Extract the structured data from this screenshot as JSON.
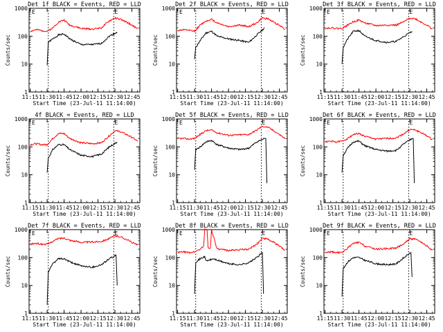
{
  "colors": {
    "events": "#000000",
    "lld": "#ff0000",
    "axis": "#000000",
    "marker": "#000000"
  },
  "shared": {
    "ylabel": "Counts/sec",
    "xlabel": "Start Time (23-Jul-11 11:14:00)",
    "x_ticks": [
      "11:15",
      "11:30",
      "11:45",
      "12:00",
      "12:15",
      "12:30",
      "12:45"
    ],
    "y_ticks": [
      "1",
      "10",
      "100",
      "1000"
    ],
    "xlim": [
      "11:14",
      "12:52"
    ],
    "ylim": [
      1,
      1000
    ],
    "y_scale": "log",
    "vertical_markers": [
      "11:31",
      "12:29"
    ],
    "marker_label": "E"
  },
  "chart_data": [
    {
      "type": "line",
      "title": "Det 1f BLACK = Events, RED = LLD",
      "series": [
        {
          "name": "Events",
          "color": "black",
          "x": [
            "11:30",
            "11:31",
            "11:35",
            "11:40",
            "11:45",
            "11:50",
            "12:00",
            "12:10",
            "12:18",
            "12:25",
            "12:32"
          ],
          "values": [
            9,
            60,
            80,
            110,
            120,
            80,
            50,
            50,
            55,
            100,
            140
          ]
        },
        {
          "name": "LLD",
          "color": "red",
          "x": [
            "11:15",
            "11:20",
            "11:25",
            "11:30",
            "11:35",
            "11:40",
            "11:45",
            "11:50",
            "12:00",
            "12:10",
            "12:18",
            "12:25",
            "12:30",
            "12:35",
            "12:40",
            "12:45",
            "12:50"
          ],
          "values": [
            150,
            170,
            160,
            150,
            200,
            320,
            380,
            250,
            190,
            180,
            200,
            350,
            450,
            400,
            320,
            250,
            180
          ]
        }
      ]
    },
    {
      "type": "line",
      "title": "Det 2f BLACK = Events, RED = LLD",
      "series": [
        {
          "name": "Events",
          "color": "black",
          "x": [
            "11:30",
            "11:31",
            "11:35",
            "11:40",
            "11:45",
            "11:50",
            "12:00",
            "12:10",
            "12:18",
            "12:25",
            "12:32"
          ],
          "values": [
            15,
            40,
            70,
            130,
            150,
            100,
            80,
            70,
            60,
            110,
            200
          ]
        },
        {
          "name": "LLD",
          "color": "red",
          "x": [
            "11:15",
            "11:20",
            "11:25",
            "11:30",
            "11:35",
            "11:40",
            "11:45",
            "11:50",
            "12:00",
            "12:10",
            "12:18",
            "12:25",
            "12:30",
            "12:35",
            "12:40",
            "12:45",
            "12:50"
          ],
          "values": [
            160,
            170,
            160,
            150,
            250,
            350,
            400,
            300,
            220,
            250,
            220,
            300,
            450,
            420,
            320,
            250,
            180
          ]
        }
      ]
    },
    {
      "type": "line",
      "title": "Det 3f BLACK = Events, RED = LLD",
      "series": [
        {
          "name": "Events",
          "color": "black",
          "x": [
            "11:30",
            "11:31",
            "11:35",
            "11:40",
            "11:45",
            "11:50",
            "12:00",
            "12:10",
            "12:18",
            "12:25",
            "12:32"
          ],
          "values": [
            10,
            40,
            80,
            150,
            160,
            100,
            70,
            60,
            65,
            100,
            150
          ]
        },
        {
          "name": "LLD",
          "color": "red",
          "x": [
            "11:15",
            "11:20",
            "11:25",
            "11:30",
            "11:35",
            "11:40",
            "11:45",
            "11:50",
            "12:00",
            "12:10",
            "12:18",
            "12:25",
            "12:30",
            "12:35",
            "12:40",
            "12:45",
            "12:50"
          ],
          "values": [
            190,
            200,
            190,
            190,
            250,
            330,
            380,
            300,
            240,
            250,
            250,
            330,
            450,
            420,
            320,
            250,
            180
          ]
        }
      ]
    },
    {
      "type": "line",
      "title": "4f BLACK = Events, RED = LLD",
      "series": [
        {
          "name": "Events",
          "color": "black",
          "x": [
            "11:30",
            "11:31",
            "11:35",
            "11:40",
            "11:45",
            "11:50",
            "12:00",
            "12:10",
            "12:18",
            "12:25",
            "12:32"
          ],
          "values": [
            12,
            40,
            80,
            120,
            120,
            80,
            50,
            45,
            55,
            100,
            150
          ]
        },
        {
          "name": "LLD",
          "color": "red",
          "x": [
            "11:15",
            "11:20",
            "11:25",
            "11:30",
            "11:35",
            "11:40",
            "11:45",
            "11:50",
            "12:00",
            "12:10",
            "12:18",
            "12:25",
            "12:30",
            "12:35",
            "12:40",
            "12:45",
            "12:50"
          ],
          "values": [
            120,
            130,
            120,
            120,
            200,
            300,
            300,
            200,
            140,
            130,
            140,
            250,
            380,
            350,
            280,
            220,
            160
          ]
        }
      ]
    },
    {
      "type": "line",
      "title": "Det 5f BLACK = Events, RED = LLD",
      "series": [
        {
          "name": "Events",
          "color": "black",
          "x": [
            "11:30",
            "11:31",
            "11:35",
            "11:40",
            "11:45",
            "11:50",
            "12:00",
            "12:10",
            "12:18",
            "12:25",
            "12:32",
            "12:33",
            "12:34"
          ],
          "values": [
            15,
            80,
            100,
            150,
            170,
            120,
            90,
            80,
            90,
            150,
            200,
            200,
            5
          ]
        },
        {
          "name": "LLD",
          "color": "red",
          "x": [
            "11:15",
            "11:20",
            "11:25",
            "11:30",
            "11:35",
            "11:40",
            "11:45",
            "11:50",
            "12:00",
            "12:10",
            "12:18",
            "12:25",
            "12:30",
            "12:35",
            "12:40",
            "12:45",
            "12:50"
          ],
          "values": [
            200,
            200,
            190,
            200,
            280,
            380,
            400,
            320,
            260,
            270,
            280,
            400,
            550,
            500,
            380,
            280,
            200
          ]
        }
      ]
    },
    {
      "type": "line",
      "title": "Det 6f BLACK = Events, RED = LLD",
      "series": [
        {
          "name": "Events",
          "color": "black",
          "x": [
            "11:30",
            "11:31",
            "11:35",
            "11:40",
            "11:45",
            "11:50",
            "12:00",
            "12:10",
            "12:18",
            "12:25",
            "12:32",
            "12:33",
            "12:34"
          ],
          "values": [
            12,
            50,
            90,
            150,
            160,
            110,
            80,
            70,
            75,
            130,
            200,
            200,
            5
          ]
        },
        {
          "name": "LLD",
          "color": "red",
          "x": [
            "11:15",
            "11:20",
            "11:25",
            "11:30",
            "11:35",
            "11:40",
            "11:45",
            "11:50",
            "12:00",
            "12:10",
            "12:18",
            "12:25",
            "12:30",
            "12:35",
            "12:40",
            "12:45",
            "12:50"
          ],
          "values": [
            150,
            160,
            150,
            160,
            200,
            280,
            300,
            240,
            190,
            200,
            210,
            300,
            420,
            400,
            320,
            250,
            180
          ]
        }
      ]
    },
    {
      "type": "line",
      "title": "Det 7f BLACK = Events, RED = LLD",
      "series": [
        {
          "name": "Events",
          "color": "black",
          "x": [
            "11:30",
            "11:31",
            "11:35",
            "11:40",
            "11:45",
            "11:50",
            "12:00",
            "12:10",
            "12:18",
            "12:25",
            "12:31",
            "12:32"
          ],
          "values": [
            2,
            30,
            60,
            90,
            90,
            70,
            50,
            45,
            55,
            90,
            120,
            10
          ]
        },
        {
          "name": "LLD",
          "color": "red",
          "x": [
            "11:15",
            "11:20",
            "11:25",
            "11:30",
            "11:35",
            "11:40",
            "11:45",
            "11:50",
            "12:00",
            "12:10",
            "12:18",
            "12:25",
            "12:30",
            "12:35",
            "12:40",
            "12:45",
            "12:50"
          ],
          "values": [
            300,
            320,
            300,
            300,
            380,
            480,
            500,
            420,
            350,
            360,
            380,
            480,
            600,
            550,
            450,
            350,
            280
          ]
        }
      ]
    },
    {
      "type": "line",
      "title": "Det 8f BLACK = Events, RED = LLD",
      "series": [
        {
          "name": "Events",
          "color": "black",
          "x": [
            "11:30",
            "11:31",
            "11:35",
            "11:39",
            "11:40",
            "11:47",
            "11:50",
            "12:00",
            "12:10",
            "12:18",
            "12:25",
            "12:30",
            "12:31"
          ],
          "values": [
            5,
            70,
            90,
            110,
            75,
            90,
            80,
            60,
            55,
            65,
            100,
            150,
            5
          ]
        },
        {
          "name": "LLD",
          "color": "red",
          "x": [
            "11:15",
            "11:20",
            "11:25",
            "11:30",
            "11:35",
            "11:38",
            "11:39",
            "11:41",
            "11:42",
            "11:44",
            "11:45",
            "11:50",
            "12:00",
            "12:10",
            "12:18",
            "12:25",
            "12:30",
            "12:35",
            "12:40",
            "12:45",
            "12:50"
          ],
          "values": [
            150,
            160,
            150,
            160,
            200,
            260,
            1000,
            1000,
            220,
            220,
            1000,
            200,
            180,
            190,
            200,
            300,
            500,
            450,
            350,
            260,
            180
          ]
        }
      ]
    },
    {
      "type": "line",
      "title": "Det 9f BLACK = Events, RED = LLD",
      "series": [
        {
          "name": "Events",
          "color": "black",
          "x": [
            "11:30",
            "11:31",
            "11:35",
            "11:40",
            "11:45",
            "11:50",
            "12:00",
            "12:10",
            "12:18",
            "12:25",
            "12:31",
            "12:32"
          ],
          "values": [
            4,
            40,
            70,
            100,
            100,
            80,
            60,
            55,
            60,
            100,
            150,
            20
          ]
        },
        {
          "name": "LLD",
          "color": "red",
          "x": [
            "11:15",
            "11:20",
            "11:25",
            "11:30",
            "11:35",
            "11:40",
            "11:45",
            "11:50",
            "12:00",
            "12:10",
            "12:18",
            "12:25",
            "12:30",
            "12:35",
            "12:40",
            "12:45",
            "12:50"
          ],
          "values": [
            150,
            160,
            150,
            150,
            220,
            320,
            350,
            260,
            200,
            210,
            220,
            320,
            480,
            450,
            350,
            260,
            180
          ]
        }
      ]
    }
  ]
}
